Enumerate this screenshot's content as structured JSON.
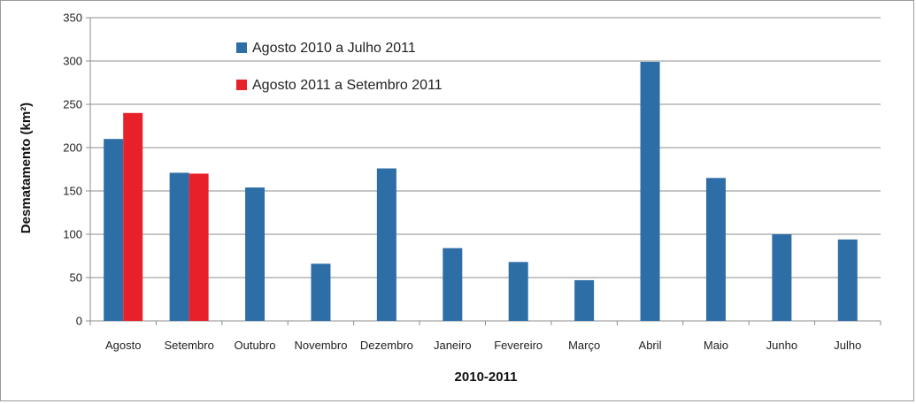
{
  "chart_data": {
    "type": "bar",
    "title": "",
    "xlabel": "2010-2011",
    "ylabel": "Desmatamento (km²)",
    "ylim": [
      0,
      350
    ],
    "yticks": [
      0,
      50,
      100,
      150,
      200,
      250,
      300,
      350
    ],
    "grid": "horizontal",
    "legend_position": "top-center",
    "categories": [
      "Agosto",
      "Setembro",
      "Outubro",
      "Novembro",
      "Dezembro",
      "Janeiro",
      "Fevereiro",
      "Março",
      "Abril",
      "Maio",
      "Junho",
      "Julho"
    ],
    "series": [
      {
        "name": "Agosto 2010 a Julho 2011",
        "color": "#2e6ea6",
        "values": [
          210,
          171,
          154,
          66,
          176,
          84,
          68,
          47,
          299,
          165,
          100,
          94
        ]
      },
      {
        "name": "Agosto 2011 a Setembro 2011",
        "color": "#e8202a",
        "values": [
          240,
          170,
          null,
          null,
          null,
          null,
          null,
          null,
          null,
          null,
          null,
          null
        ]
      }
    ]
  }
}
